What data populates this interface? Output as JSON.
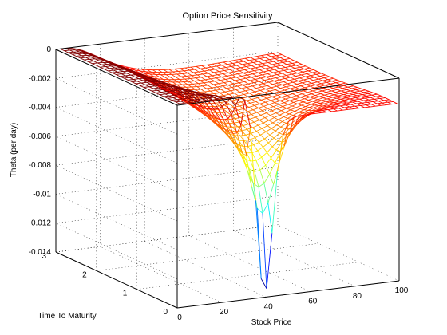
{
  "chart_data": {
    "type": "surface",
    "title": "Option Price Sensitivity",
    "xlabel": "Stock Price",
    "ylabel": "Time To Maturity",
    "zlabel": "Theta (per day)",
    "x_ticks": [
      "0",
      "20",
      "40",
      "60",
      "80",
      "100"
    ],
    "y_ticks": [
      "0",
      "1",
      "2",
      "3"
    ],
    "z_ticks": [
      "0",
      "-0.002",
      "-0.004",
      "-0.006",
      "-0.008",
      "-0.01",
      "-0.012",
      "-0.014"
    ],
    "xlim": [
      0,
      100
    ],
    "ylim": [
      0,
      3
    ],
    "zlim": [
      -0.014,
      0
    ],
    "colormap": "jet",
    "grid": true,
    "surface": {
      "description_type": "mesh",
      "stock_price_range": [
        2,
        100
      ],
      "time_range": [
        0.05,
        3
      ],
      "strike_approx": 40,
      "min_theta": -0.0135,
      "min_at": {
        "stock_price": 40,
        "time_to_maturity": 0.05
      },
      "theta_far_in_money": -0.0033,
      "theta_far_out_of_money": 0
    }
  }
}
